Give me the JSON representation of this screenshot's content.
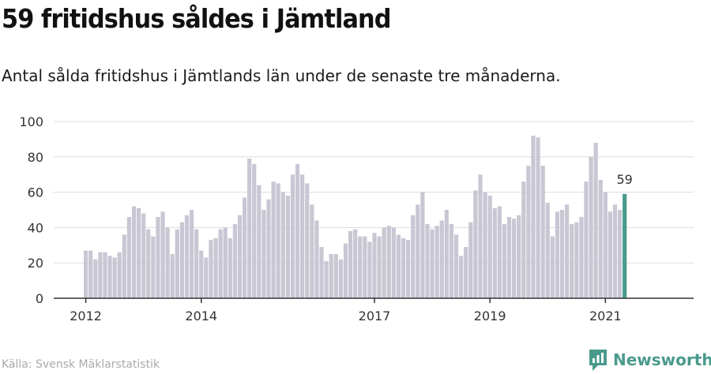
{
  "header": {
    "title": "59 fritidshus såldes i Jämtland",
    "subtitle": "Antal sålda fritidshus i Jämtlands län under de senaste tre månaderna."
  },
  "footer": {
    "source": "Källa: Svensk Mäklarstatistik",
    "brand": "Newsworthy"
  },
  "colors": {
    "bar": "#c8c7d3",
    "highlight": "#4a9a8c",
    "grid": "#dddddd",
    "text": "#333333"
  },
  "chart_data": {
    "type": "bar",
    "title": "59 fritidshus såldes i Jämtland",
    "subtitle": "Antal sålda fritidshus i Jämtlands län under de senaste tre månaderna.",
    "ylim": [
      0,
      100
    ],
    "yticks": [
      0,
      20,
      40,
      60,
      80,
      100
    ],
    "xticks": [
      {
        "label": "2012",
        "index": 0
      },
      {
        "label": "2014",
        "index": 24
      },
      {
        "label": "2017",
        "index": 60
      },
      {
        "label": "2019",
        "index": 84
      },
      {
        "label": "2021",
        "index": 108
      }
    ],
    "values": [
      27,
      27,
      22,
      26,
      26,
      24,
      23,
      26,
      36,
      46,
      52,
      51,
      48,
      39,
      35,
      46,
      49,
      40,
      25,
      39,
      43,
      47,
      50,
      39,
      27,
      23,
      33,
      34,
      39,
      40,
      34,
      42,
      47,
      57,
      79,
      76,
      64,
      50,
      56,
      66,
      65,
      60,
      58,
      70,
      76,
      70,
      65,
      53,
      44,
      29,
      21,
      25,
      25,
      22,
      31,
      38,
      39,
      35,
      35,
      32,
      37,
      35,
      40,
      41,
      40,
      36,
      34,
      33,
      47,
      53,
      60,
      42,
      39,
      41,
      44,
      50,
      42,
      36,
      24,
      29,
      43,
      61,
      70,
      60,
      58,
      51,
      52,
      42,
      46,
      45,
      47,
      66,
      75,
      92,
      91,
      75,
      54,
      35,
      49,
      50,
      53,
      42,
      43,
      46,
      66,
      80,
      88,
      67,
      60,
      49,
      53,
      50,
      59
    ],
    "highlight_index": 112,
    "highlight_label": "59",
    "grid": true
  }
}
